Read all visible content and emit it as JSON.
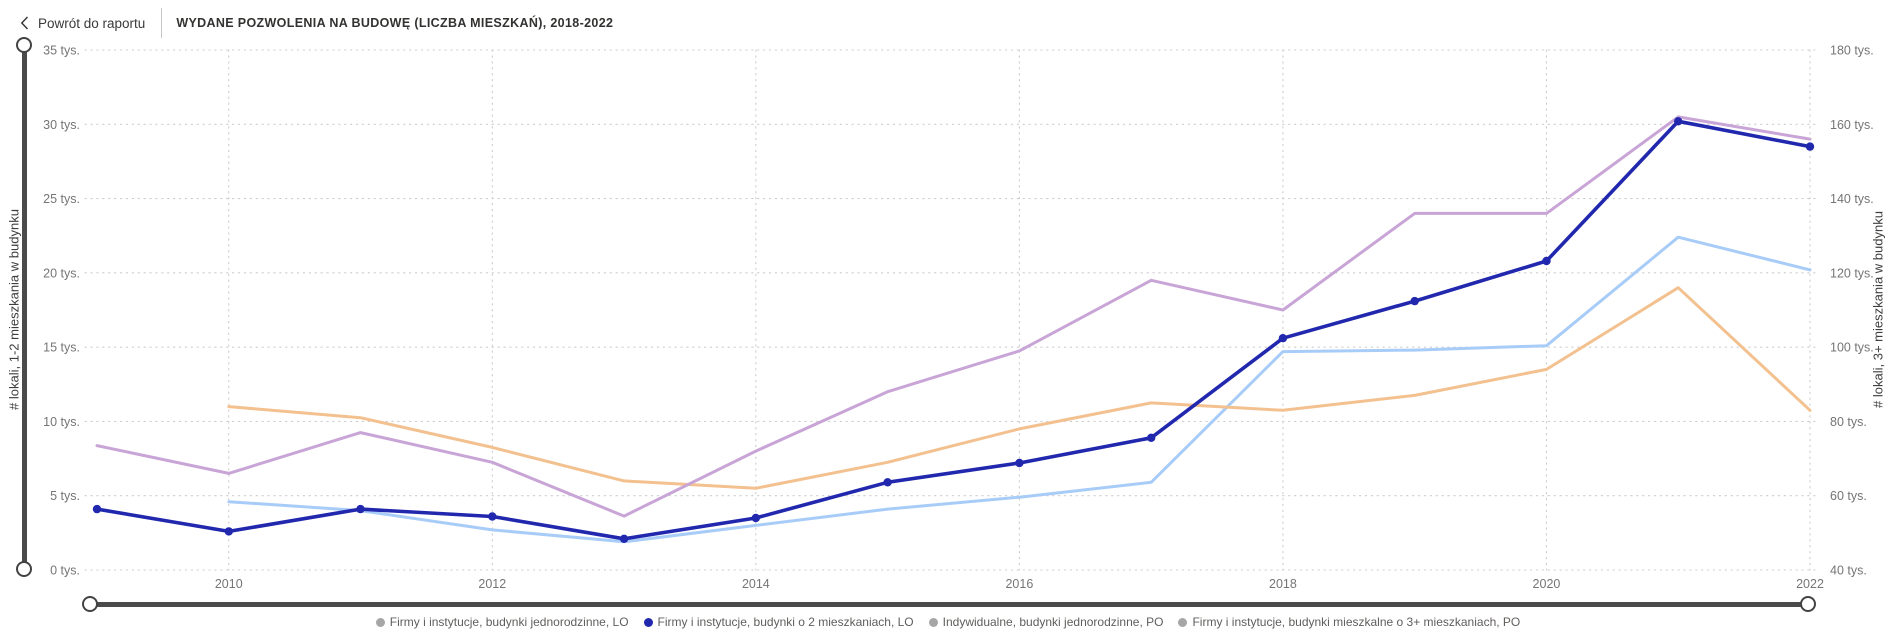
{
  "header": {
    "back_label": "Powrót do raportu",
    "title": "WYDANE POZWOLENIA NA BUDOWĘ (LICZBA MIESZKAŃ), 2018-2022"
  },
  "chart_data": {
    "type": "line",
    "title": "WYDANE POZWOLENIA NA BUDOWĘ (LICZBA MIESZKAŃ), 2018-2022",
    "x_range": [
      2009,
      2022
    ],
    "x_tick_years": [
      2010,
      2012,
      2014,
      2016,
      2018,
      2020,
      2022
    ],
    "x_tick_labels": [
      "2010",
      "2012",
      "2014",
      "2016",
      "2018",
      "2020",
      "2022"
    ],
    "grid": "dotted",
    "legend_position": "bottom-center",
    "left_axis": {
      "title": "# lokali, 1-2 mieszkania w budynku",
      "min": 0,
      "max": 35,
      "step": 5,
      "ticks": [
        0,
        5,
        10,
        15,
        20,
        25,
        30,
        35
      ],
      "tick_labels": [
        "0 tys.",
        "5 tys.",
        "10 tys.",
        "15 tys.",
        "20 tys.",
        "25 tys.",
        "30 tys.",
        "35 tys."
      ]
    },
    "right_axis": {
      "title": "# lokali, 3+ mieszkania w budynku",
      "min": 40,
      "max": 180,
      "step": 20,
      "ticks": [
        40,
        60,
        80,
        100,
        120,
        140,
        160,
        180
      ],
      "tick_labels": [
        "40 tys.",
        "60 tys.",
        "80 tys.",
        "100 tys.",
        "120 tys.",
        "140 tys.",
        "160 tys.",
        "180 tys."
      ]
    },
    "unit": "tys.",
    "series": [
      {
        "id": "firmy-jednorodzinne-lo",
        "name": "Firmy i instytucje, budynki jednorodzinne, LO",
        "axis": "left",
        "color": "#a8ccf8",
        "legend_dot_color": "#a6a6a6",
        "markers": false,
        "width": 3,
        "z": 1,
        "values": [
          null,
          4.6,
          4.0,
          2.7,
          1.9,
          3.0,
          4.1,
          4.9,
          5.9,
          14.7,
          14.8,
          15.1,
          22.4,
          20.2
        ]
      },
      {
        "id": "firmy-2-mieszkania-lo",
        "name": "Firmy i instytucje, budynki o 2 mieszkaniach, LO",
        "axis": "left",
        "color": "#2128ae",
        "legend_dot_color": "#2128ae",
        "markers": true,
        "width": 3.6,
        "z": 4,
        "values": [
          4.1,
          2.6,
          4.1,
          3.6,
          2.1,
          3.5,
          5.9,
          7.2,
          8.9,
          15.6,
          18.1,
          20.8,
          30.2,
          28.5
        ]
      },
      {
        "id": "indywidualne-jednorodzinne-po",
        "name": "Indywidualne, budynki jednorodzinne, PO",
        "axis": "right",
        "color": "#f3c18f",
        "legend_dot_color": "#a6a6a6",
        "markers": false,
        "width": 3,
        "z": 2,
        "values": [
          null,
          84,
          81,
          73,
          64,
          62,
          69,
          78,
          85,
          83,
          87,
          94,
          116,
          83
        ]
      },
      {
        "id": "firmy-3plus-po",
        "name": "Firmy i instytucje, budynki mieszkalne o 3+ mieszkaniach, PO",
        "axis": "right",
        "color": "#c8a5d6",
        "legend_dot_color": "#a6a6a6",
        "markers": false,
        "width": 3,
        "z": 3,
        "values": [
          73.5,
          66,
          77,
          69,
          54.5,
          72,
          88,
          99,
          118,
          110,
          136,
          136,
          162,
          156
        ]
      }
    ]
  }
}
